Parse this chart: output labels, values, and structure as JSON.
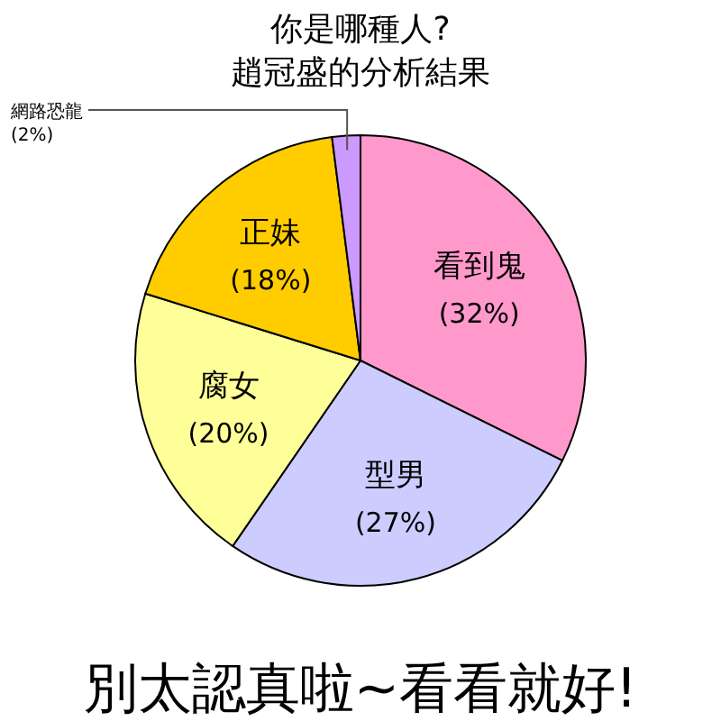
{
  "chart_data": {
    "type": "pie",
    "title": "你是哪種人?",
    "subtitle": "趙冠盛的分析結果",
    "categories": [
      "看到鬼",
      "型男",
      "腐女",
      "正妹",
      "網路恐龍"
    ],
    "values": [
      32,
      27,
      20,
      18,
      2
    ],
    "value_labels": [
      "(32%)",
      "(27%)",
      "(20%)",
      "(18%)",
      "(2%)"
    ],
    "colors": [
      "#ff99cc",
      "#ccccff",
      "#ffff99",
      "#ffcc00",
      "#cc99ff"
    ],
    "annotations": [
      "別太認真啦~看看就好!"
    ]
  }
}
